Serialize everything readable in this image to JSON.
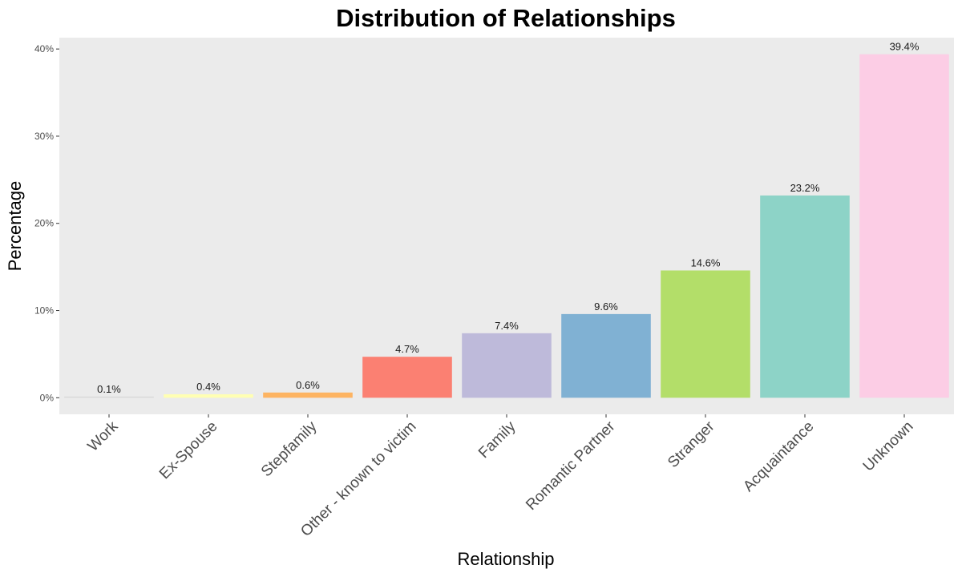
{
  "chart_data": {
    "type": "bar",
    "title": "Distribution of Relationships",
    "xlabel": "Relationship",
    "ylabel": "Percentage",
    "categories": [
      "Work",
      "Ex-Spouse",
      "Stepfamily",
      "Other - known to victim",
      "Family",
      "Romantic Partner",
      "Stranger",
      "Acquaintance",
      "Unknown"
    ],
    "values": [
      0.1,
      0.4,
      0.6,
      4.7,
      7.4,
      9.6,
      14.6,
      23.2,
      39.4
    ],
    "data_labels": [
      "0.1%",
      "0.4%",
      "0.6%",
      "4.7%",
      "7.4%",
      "9.6%",
      "14.6%",
      "23.2%",
      "39.4%"
    ],
    "colors": [
      "#d9d9d9",
      "#ffffb3",
      "#fdb462",
      "#fb8072",
      "#bebada",
      "#80b1d3",
      "#b3de69",
      "#8dd3c7",
      "#fccde5"
    ],
    "ylim": [
      -1.9,
      41.3
    ],
    "yticks": [
      0,
      10,
      20,
      30,
      40
    ],
    "ytick_labels": [
      "0%",
      "10%",
      "20%",
      "30%",
      "40%"
    ],
    "grid": false,
    "legend": "none",
    "panel_background": "#ebebeb"
  }
}
